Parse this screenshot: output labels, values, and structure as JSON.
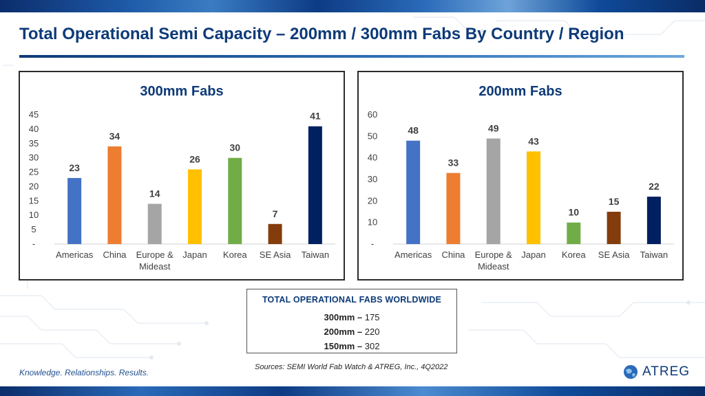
{
  "slide": {
    "title": "Total Operational Semi Capacity – 200mm / 300mm Fabs By Country / Region",
    "tagline": "Knowledge. Relationships. Results.",
    "sources": "Sources: SEMI World Fab Watch & ATREG, Inc., 4Q2022",
    "brand": "ATREG"
  },
  "summary": {
    "heading": "TOTAL OPERATIONAL FABS WORLDWIDE",
    "lines": [
      {
        "label": "300mm",
        "sep": " – ",
        "value": "175"
      },
      {
        "label": "200mm",
        "sep": " – ",
        "value": "220"
      },
      {
        "label": "150mm",
        "sep": " – ",
        "value": "302"
      }
    ]
  },
  "chart_data": [
    {
      "type": "bar",
      "title": "300mm Fabs",
      "categories": [
        "Americas",
        "China",
        "Europe & Mideast",
        "Japan",
        "Korea",
        "SE Asia",
        "Taiwan"
      ],
      "category_lines": [
        [
          "Americas"
        ],
        [
          "China"
        ],
        [
          "Europe &",
          "Mideast"
        ],
        [
          "Japan"
        ],
        [
          "Korea"
        ],
        [
          "SE Asia"
        ],
        [
          "Taiwan"
        ]
      ],
      "values": [
        23,
        34,
        14,
        26,
        30,
        7,
        41
      ],
      "colors": [
        "#4472c4",
        "#ed7d31",
        "#a5a5a5",
        "#ffc000",
        "#70ad47",
        "#843c0c",
        "#002060"
      ],
      "ylim": [
        0,
        45
      ],
      "yticks": [
        0,
        5,
        10,
        15,
        20,
        25,
        30,
        35,
        40,
        45
      ],
      "ytick_labels": [
        "-",
        "5",
        "10",
        "15",
        "20",
        "25",
        "30",
        "35",
        "40",
        "45"
      ],
      "xlabel": "",
      "ylabel": "",
      "grid": false,
      "data_labels": true
    },
    {
      "type": "bar",
      "title": "200mm Fabs",
      "categories": [
        "Americas",
        "China",
        "Europe & Mideast",
        "Japan",
        "Korea",
        "SE Asia",
        "Taiwan"
      ],
      "category_lines": [
        [
          "Americas"
        ],
        [
          "China"
        ],
        [
          "Europe &",
          "Mideast"
        ],
        [
          "Japan"
        ],
        [
          "Korea"
        ],
        [
          "SE Asia"
        ],
        [
          "Taiwan"
        ]
      ],
      "values": [
        48,
        33,
        49,
        43,
        10,
        15,
        22
      ],
      "colors": [
        "#4472c4",
        "#ed7d31",
        "#a5a5a5",
        "#ffc000",
        "#70ad47",
        "#843c0c",
        "#002060"
      ],
      "ylim": [
        0,
        60
      ],
      "yticks": [
        0,
        10,
        20,
        30,
        40,
        50,
        60
      ],
      "ytick_labels": [
        "-",
        "10",
        "20",
        "30",
        "40",
        "50",
        "60"
      ],
      "xlabel": "",
      "ylabel": "",
      "grid": false,
      "data_labels": true
    }
  ]
}
